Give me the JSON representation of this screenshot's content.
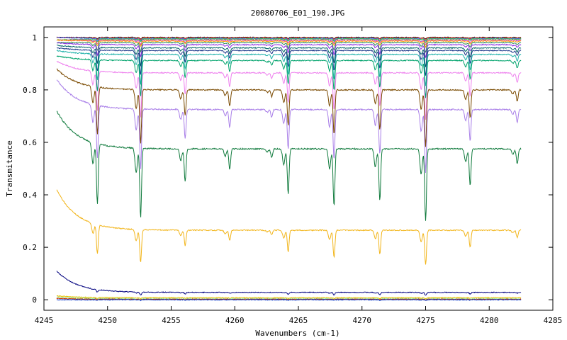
{
  "chart_data": {
    "type": "line",
    "title": "20080706_E01_190.JPG",
    "xlabel": "Wavenumbers (cm-1)",
    "ylabel": "Transmitance",
    "xlim": [
      4245,
      4285
    ],
    "ylim": [
      -0.04,
      1.04
    ],
    "x_ticks": [
      "4245",
      "4250",
      "4255",
      "4260",
      "4265",
      "4270",
      "4275",
      "4280",
      "4285"
    ],
    "y_ticks": [
      "0",
      "0.2",
      "0.4",
      "0.6",
      "0.8",
      "1"
    ],
    "grid": false,
    "legend": "none",
    "x_range_data": [
      4246,
      4282.5
    ],
    "absorption_lines": [
      {
        "x": 4249.2,
        "depth": 1.0
      },
      {
        "x": 4252.6,
        "depth": 1.15
      },
      {
        "x": 4256.1,
        "depth": 0.55
      },
      {
        "x": 4259.6,
        "depth": 0.35
      },
      {
        "x": 4262.9,
        "depth": 0.15
      },
      {
        "x": 4264.2,
        "depth": 0.75
      },
      {
        "x": 4267.8,
        "depth": 0.95
      },
      {
        "x": 4271.4,
        "depth": 0.85
      },
      {
        "x": 4275.0,
        "depth": 1.2
      },
      {
        "x": 4278.5,
        "depth": 0.6
      },
      {
        "x": 4282.2,
        "depth": 0.25
      }
    ],
    "series": [
      {
        "color": "#1a1a1a",
        "start": 1.0,
        "plateau": 1.0,
        "dip": 0.005
      },
      {
        "color": "#ff3300",
        "start": 1.0,
        "plateau": 0.998,
        "dip": 0.006
      },
      {
        "color": "#3366ff",
        "start": 1.0,
        "plateau": 0.996,
        "dip": 0.008
      },
      {
        "color": "#33cc33",
        "start": 0.99,
        "plateau": 0.994,
        "dip": 0.01
      },
      {
        "color": "#cc33cc",
        "start": 0.99,
        "plateau": 0.99,
        "dip": 0.014
      },
      {
        "color": "#ff9900",
        "start": 0.99,
        "plateau": 0.986,
        "dip": 0.018
      },
      {
        "color": "#2e8b57",
        "start": 0.98,
        "plateau": 0.98,
        "dip": 0.03
      },
      {
        "color": "#8a2be2",
        "start": 0.98,
        "plateau": 0.972,
        "dip": 0.04
      },
      {
        "color": "#006666",
        "start": 0.97,
        "plateau": 0.96,
        "dip": 0.06
      },
      {
        "color": "#1e3a8a",
        "start": 0.96,
        "plateau": 0.95,
        "dip": 0.08
      },
      {
        "color": "#20b2aa",
        "start": 0.95,
        "plateau": 0.935,
        "dip": 0.1
      },
      {
        "color": "#00a36c",
        "start": 0.93,
        "plateau": 0.912,
        "dip": 0.12
      },
      {
        "color": "#ee82ee",
        "start": 0.91,
        "plateau": 0.865,
        "dip": 0.15
      },
      {
        "color": "#7a4a00",
        "start": 0.88,
        "plateau": 0.8,
        "dip": 0.18
      },
      {
        "color": "#a97fe8",
        "start": 0.84,
        "plateau": 0.725,
        "dip": 0.2
      },
      {
        "color": "#0f7a3c",
        "start": 0.72,
        "plateau": 0.575,
        "dip": 0.23
      },
      {
        "color": "#f2b51a",
        "start": 0.42,
        "plateau": 0.265,
        "dip": 0.11
      },
      {
        "color": "#00007f",
        "start": 0.11,
        "plateau": 0.028,
        "dip": 0.01
      },
      {
        "color": "#e6c200",
        "start": 0.015,
        "plateau": 0.008,
        "dip": 0.004
      },
      {
        "color": "#98e898",
        "start": 0.01,
        "plateau": 0.004,
        "dip": 0.004
      },
      {
        "color": "#cc3300",
        "start": 0.005,
        "plateau": 0.002,
        "dip": 0.002
      },
      {
        "color": "#0033cc",
        "start": 0.0,
        "plateau": 0.0,
        "dip": 0.002
      }
    ]
  }
}
